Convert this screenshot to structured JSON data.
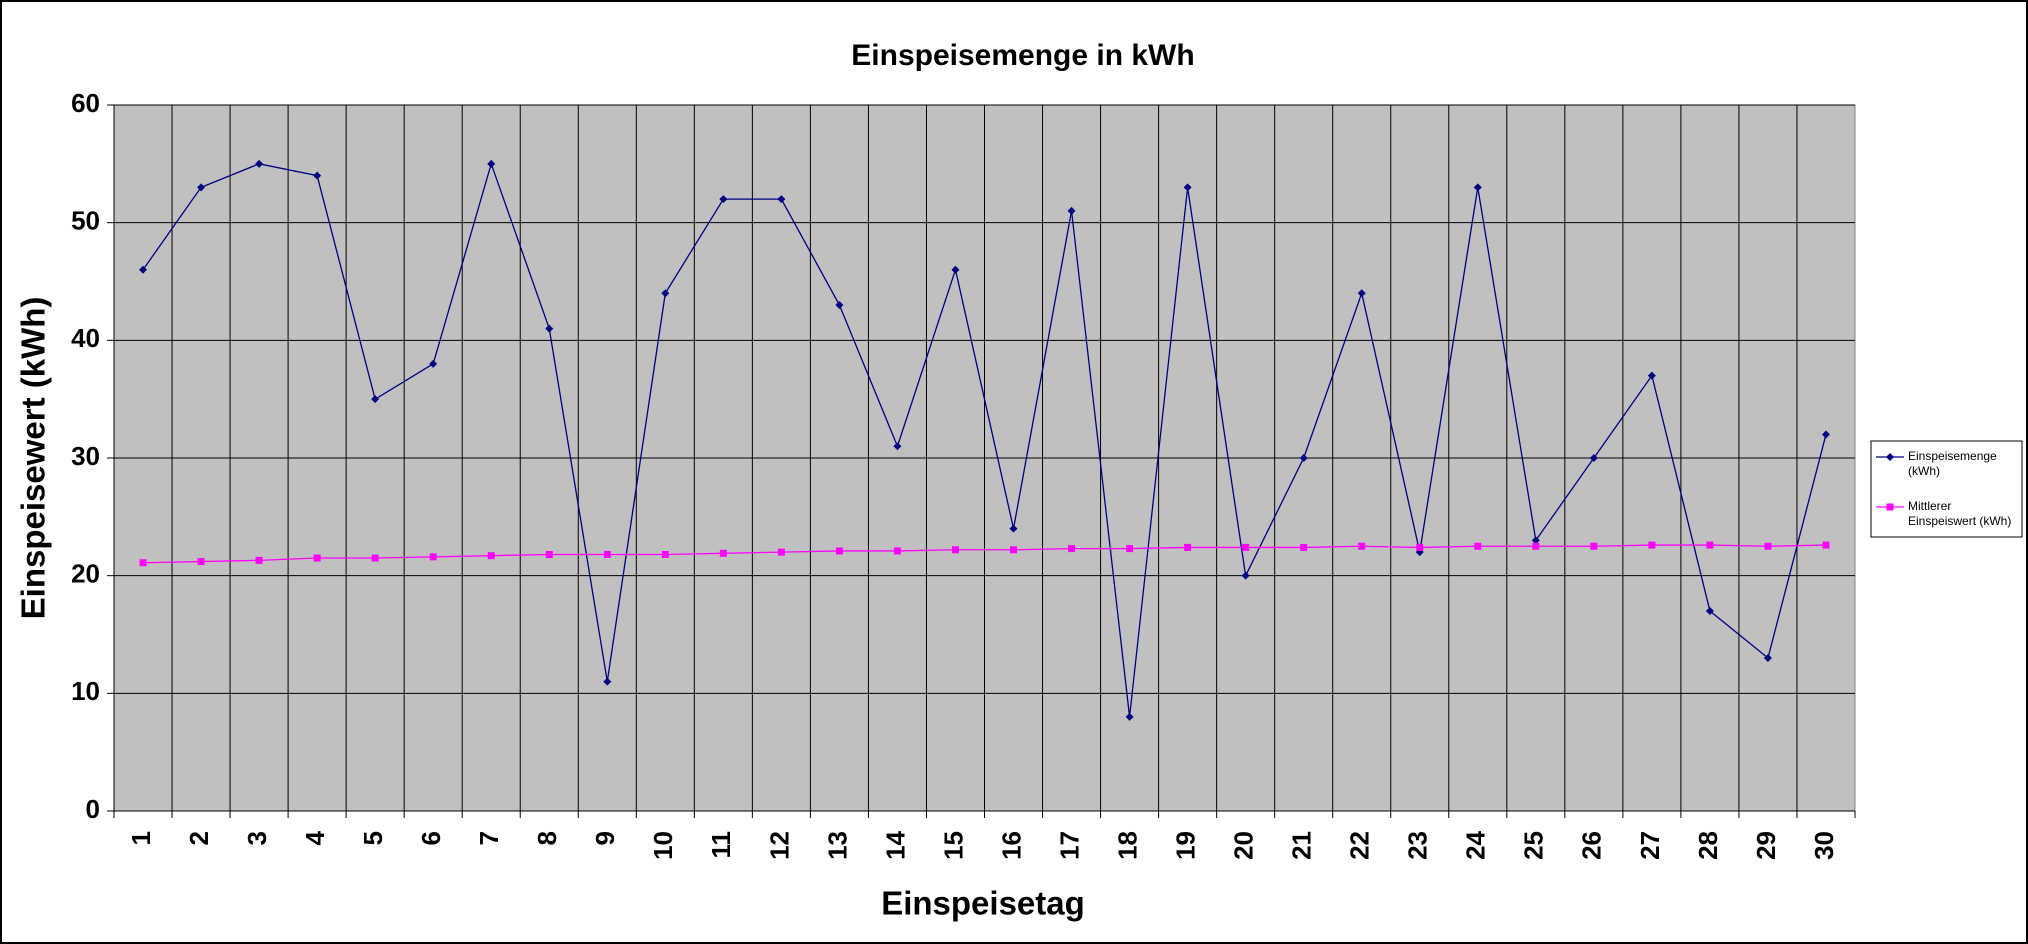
{
  "chart_data": {
    "type": "line",
    "title": "Einspeisemenge in kWh",
    "x_label": "Einspeisetag",
    "y_label": "Einspeisewert  (kWh)",
    "categories": [
      "1",
      "2",
      "3",
      "4",
      "5",
      "6",
      "7",
      "8",
      "9",
      "10",
      "11",
      "12",
      "13",
      "14",
      "15",
      "16",
      "17",
      "18",
      "19",
      "20",
      "21",
      "22",
      "23",
      "24",
      "25",
      "26",
      "27",
      "28",
      "29",
      "30"
    ],
    "series": [
      {
        "name": "Einspeisemenge (kWh)",
        "color": "#000080",
        "marker": "diamond",
        "values": [
          46,
          53,
          55,
          54,
          35,
          38,
          55,
          41,
          11,
          44,
          52,
          52,
          43,
          31,
          46,
          24,
          51,
          8,
          53,
          20,
          30,
          44,
          22,
          53,
          23,
          30,
          37,
          17,
          13,
          32
        ]
      },
      {
        "name": "Mittlerer Einspeiswert (kWh)",
        "color": "#ff00ff",
        "marker": "square",
        "values": [
          21.1,
          21.2,
          21.3,
          21.5,
          21.5,
          21.6,
          21.7,
          21.8,
          21.8,
          21.8,
          21.9,
          22.0,
          22.1,
          22.1,
          22.2,
          22.2,
          22.3,
          22.3,
          22.4,
          22.4,
          22.4,
          22.5,
          22.4,
          22.5,
          22.5,
          22.5,
          22.6,
          22.6,
          22.5,
          22.6
        ]
      }
    ],
    "ylim": [
      0,
      60
    ],
    "yticks": [
      0,
      10,
      20,
      30,
      40,
      50,
      60
    ],
    "grid": true,
    "plot_background": "#c0c0c0",
    "legend": "right"
  }
}
